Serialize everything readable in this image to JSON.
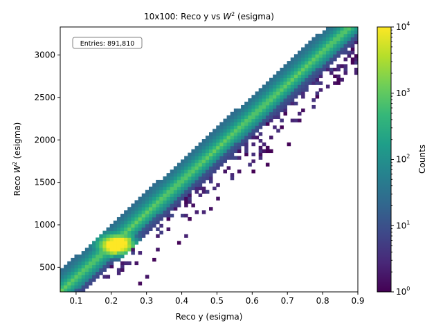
{
  "chart_data": {
    "type": "heatmap",
    "title": "10x100: Reco y vs W² (esigma)",
    "title_parts": {
      "prefix": "10x100: Reco y vs ",
      "var": "W",
      "sup": "2",
      "suffix": " (esigma)"
    },
    "xlabel": "Reco y (esigma)",
    "ylabel_parts": {
      "prefix": "Reco ",
      "var": "W",
      "sup": "2",
      "suffix": " (esigma)"
    },
    "xlim": [
      0.055,
      0.9
    ],
    "ylim": [
      210,
      3330
    ],
    "xticks": [
      0.1,
      0.2,
      0.3,
      0.4,
      0.5,
      0.6,
      0.7,
      0.8,
      0.9
    ],
    "xtick_labels": [
      "0.1",
      "0.2",
      "0.3",
      "0.4",
      "0.5",
      "0.6",
      "0.7",
      "0.8",
      "0.9"
    ],
    "yticks": [
      500,
      1000,
      1500,
      2000,
      2500,
      3000
    ],
    "ytick_labels": [
      "500",
      "1000",
      "1500",
      "2000",
      "2500",
      "3000"
    ],
    "colorbar": {
      "label": "Counts",
      "scale": "log",
      "range": [
        1,
        10000
      ],
      "colormap": "viridis",
      "ticks": [
        {
          "value": 1,
          "base": "10",
          "exp": "0"
        },
        {
          "value": 10,
          "base": "10",
          "exp": "1"
        },
        {
          "value": 100,
          "base": "10",
          "exp": "2"
        },
        {
          "value": 1000,
          "base": "10",
          "exp": "3"
        },
        {
          "value": 10000,
          "base": "10",
          "exp": "4"
        }
      ]
    },
    "annotation": "Entries: 891,810",
    "grid": false,
    "band": {
      "description": "diagonal correlation band; W2 grows linearly with y",
      "ridge_w2_per_y": 3800,
      "half_width_w2": 250,
      "hot_spot": {
        "y": 0.22,
        "w2": 760,
        "counts": 10000
      },
      "sparse_tail": "low-count scatter below the band for y > 0.3"
    }
  },
  "colors": {
    "viridis": [
      "#440154",
      "#482878",
      "#3e4989",
      "#31688e",
      "#26828e",
      "#1f9e89",
      "#35b779",
      "#6ece58",
      "#b5de2b",
      "#fde725"
    ],
    "axes": "#000000",
    "background": "#ffffff",
    "annotation_box_edge": "#808080"
  }
}
